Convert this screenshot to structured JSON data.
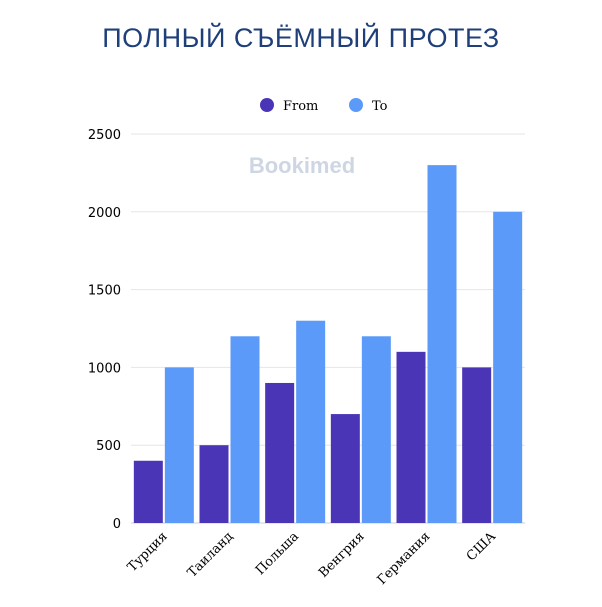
{
  "colors": {
    "from": "#4a35b6",
    "to": "#5b9af8",
    "title": "#1f3f7a",
    "grid": "#e6e6e6"
  },
  "watermark": "Bookimed",
  "chart_data": {
    "type": "bar",
    "title": "ПОЛНЫЙ СЪЁМНЫЙ ПРОТЕЗ",
    "xlabel": "",
    "ylabel": "",
    "categories": [
      "Турция",
      "Таиланд",
      "Польша",
      "Венгрия",
      "Германия",
      "США"
    ],
    "series": [
      {
        "name": "From",
        "values": [
          400,
          500,
          900,
          700,
          1100,
          1000
        ]
      },
      {
        "name": "To",
        "values": [
          1000,
          1200,
          1300,
          1200,
          2300,
          2000
        ]
      }
    ],
    "ylim": [
      0,
      2500
    ],
    "yticks": [
      0,
      500,
      1000,
      1500,
      2000,
      2500
    ],
    "grid": true,
    "legend": "top-center"
  }
}
